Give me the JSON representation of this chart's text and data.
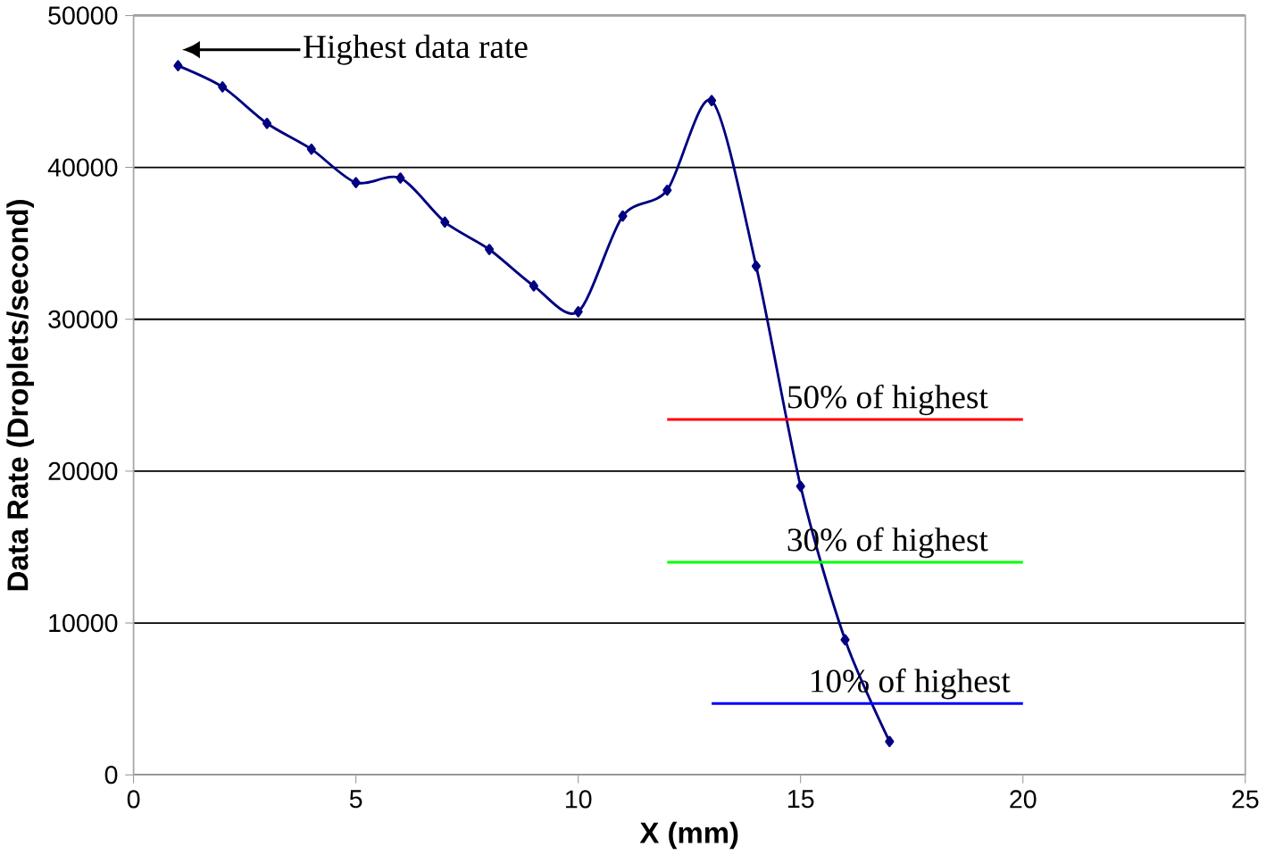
{
  "chart_data": {
    "type": "line",
    "xlabel": "X (mm)",
    "ylabel": "Data Rate (Droplets/second)",
    "xlim": [
      0,
      25
    ],
    "xticks": [
      0,
      5,
      10,
      15,
      20,
      25
    ],
    "ylim": [
      0,
      50000
    ],
    "yticks": [
      0,
      10000,
      20000,
      30000,
      40000,
      50000
    ],
    "grid": "y",
    "series": [
      {
        "color": "#000080",
        "marker": "diamond",
        "x": [
          1,
          2,
          3,
          4,
          5,
          6,
          7,
          8,
          9,
          10,
          11,
          12,
          13,
          14,
          15,
          16,
          17
        ],
        "values": [
          46700,
          45300,
          42900,
          41200,
          39000,
          39300,
          36400,
          34600,
          32200,
          30500,
          36800,
          38500,
          44400,
          33500,
          19000,
          8900,
          2200
        ]
      },
      {
        "name": "50% of highest",
        "color": "#ff0000",
        "marker": "none",
        "x": [
          12,
          20
        ],
        "values": [
          23400,
          23400
        ]
      },
      {
        "name": "30% of highest",
        "color": "#00ff00",
        "marker": "none",
        "x": [
          12,
          20
        ],
        "values": [
          14000,
          14000
        ]
      },
      {
        "name": "10% of highest",
        "color": "#0000ff",
        "marker": "none",
        "x": [
          13,
          20
        ],
        "values": [
          4700,
          4700
        ]
      }
    ],
    "annotations": [
      "Highest data rate"
    ]
  }
}
